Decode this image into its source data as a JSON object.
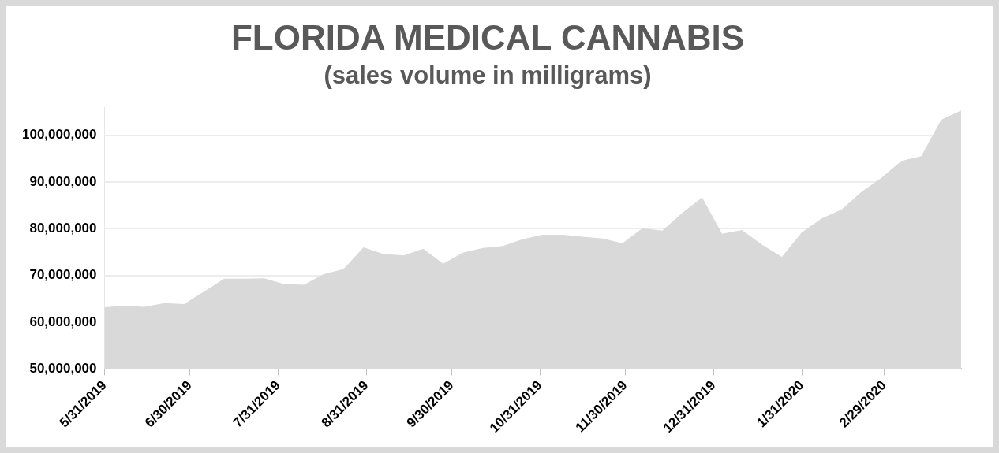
{
  "chart_data": {
    "type": "area",
    "title": "FLORIDA MEDICAL CANNABIS",
    "subtitle": "(sales volume in milligrams)",
    "x": [
      "2019-05-31",
      "2019-06-07",
      "2019-06-14",
      "2019-06-21",
      "2019-06-28",
      "2019-07-05",
      "2019-07-12",
      "2019-07-19",
      "2019-07-26",
      "2019-08-02",
      "2019-08-09",
      "2019-08-16",
      "2019-08-23",
      "2019-08-30",
      "2019-09-06",
      "2019-09-13",
      "2019-09-20",
      "2019-09-27",
      "2019-10-04",
      "2019-10-11",
      "2019-10-18",
      "2019-10-25",
      "2019-11-01",
      "2019-11-08",
      "2019-11-15",
      "2019-11-22",
      "2019-11-29",
      "2019-12-06",
      "2019-12-13",
      "2019-12-20",
      "2019-12-27",
      "2020-01-03",
      "2020-01-10",
      "2020-01-17",
      "2020-01-24",
      "2020-01-31",
      "2020-02-07",
      "2020-02-14",
      "2020-02-21",
      "2020-02-28",
      "2020-03-06",
      "2020-03-13",
      "2020-03-20",
      "2020-03-27"
    ],
    "series": [
      {
        "color": "#d9d9d9",
        "values": [
          63200000,
          63500000,
          63300000,
          64100000,
          63900000,
          66600000,
          69300000,
          69300000,
          69400000,
          68200000,
          68000000,
          70300000,
          71400000,
          76000000,
          74600000,
          74300000,
          75700000,
          72500000,
          74900000,
          75900000,
          76300000,
          77800000,
          78700000,
          78700000,
          78300000,
          77900000,
          76900000,
          80100000,
          79600000,
          83400000,
          86700000,
          78900000,
          79700000,
          76600000,
          74000000,
          79200000,
          82200000,
          84100000,
          87900000,
          90900000,
          94500000,
          95500000,
          103300000,
          105300000
        ]
      }
    ],
    "xlim": [
      "2019-05-31",
      "2020-03-27"
    ],
    "xticks": [
      {
        "value": "2019-05-31",
        "label": "5/31/2019"
      },
      {
        "value": "2019-06-30",
        "label": "6/30/2019"
      },
      {
        "value": "2019-07-31",
        "label": "7/31/2019"
      },
      {
        "value": "2019-08-31",
        "label": "8/31/2019"
      },
      {
        "value": "2019-09-30",
        "label": "9/30/2019"
      },
      {
        "value": "2019-10-31",
        "label": "10/31/2019"
      },
      {
        "value": "2019-11-30",
        "label": "11/30/2019"
      },
      {
        "value": "2019-12-31",
        "label": "12/31/2019"
      },
      {
        "value": "2020-01-31",
        "label": "1/31/2020"
      },
      {
        "value": "2020-02-29",
        "label": "2/29/2020"
      }
    ],
    "ylim": [
      50000000,
      106000000
    ],
    "yticks": [
      {
        "value": 50000000,
        "label": "50,000,000"
      },
      {
        "value": 60000000,
        "label": "60,000,000"
      },
      {
        "value": 70000000,
        "label": "70,000,000"
      },
      {
        "value": 80000000,
        "label": "80,000,000"
      },
      {
        "value": 90000000,
        "label": "90,000,000"
      },
      {
        "value": 100000000,
        "label": "100,000,000"
      }
    ],
    "grid": "y",
    "legend": false
  }
}
